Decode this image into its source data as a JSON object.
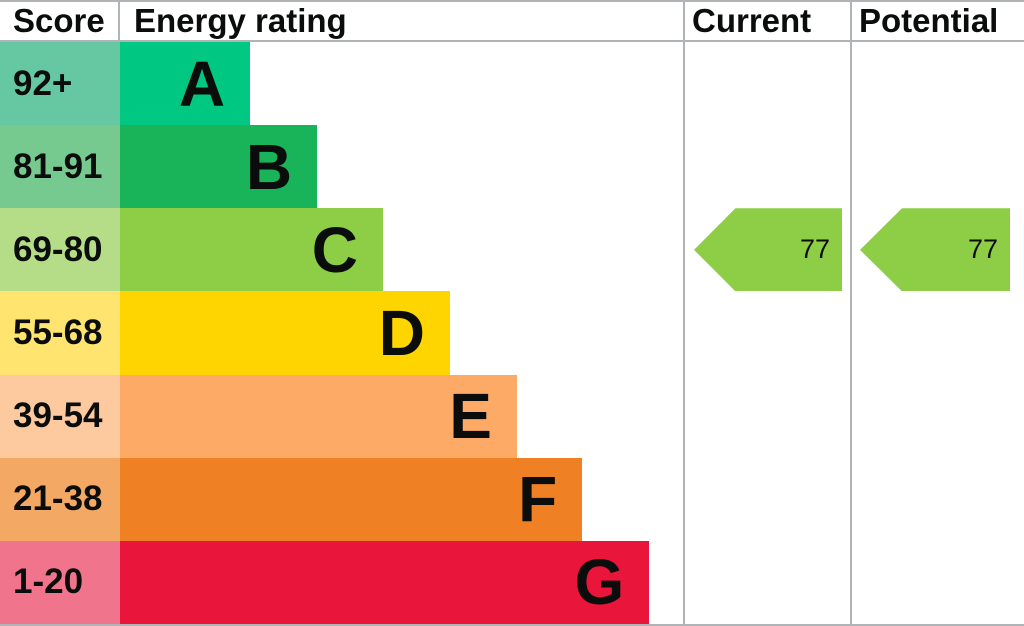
{
  "header": {
    "score": "Score",
    "energy": "Energy rating",
    "current": "Current",
    "potential": "Potential"
  },
  "chart_data": {
    "type": "bar",
    "title": "Energy rating (EPC band chart)",
    "columns": [
      "Score",
      "Energy rating",
      "Current",
      "Potential"
    ],
    "bands": [
      {
        "letter": "A",
        "score": "92+",
        "width": "23.1%",
        "color": "#00c781",
        "tint": "#66c7a3"
      },
      {
        "letter": "B",
        "score": "81-91",
        "width": "35.0%",
        "color": "#19b459",
        "tint": "#76ca90"
      },
      {
        "letter": "C",
        "score": "69-80",
        "width": "46.7%",
        "color": "#8dce46",
        "tint": "#b5dd87"
      },
      {
        "letter": "D",
        "score": "55-68",
        "width": "58.6%",
        "color": "#ffd500",
        "tint": "#ffe570"
      },
      {
        "letter": "E",
        "score": "39-54",
        "width": "70.5%",
        "color": "#fcaa65",
        "tint": "#fdc99e"
      },
      {
        "letter": "F",
        "score": "21-38",
        "width": "82.1%",
        "color": "#ef8023",
        "tint": "#f3a963"
      },
      {
        "letter": "G",
        "score": "1-20",
        "width": "94.0%",
        "color": "#e9153b",
        "tint": "#f0748c"
      }
    ],
    "current": {
      "value": "77",
      "band": "C",
      "color": "#8dce46"
    },
    "potential": {
      "value": "77",
      "band": "C",
      "color": "#8dce46"
    }
  }
}
